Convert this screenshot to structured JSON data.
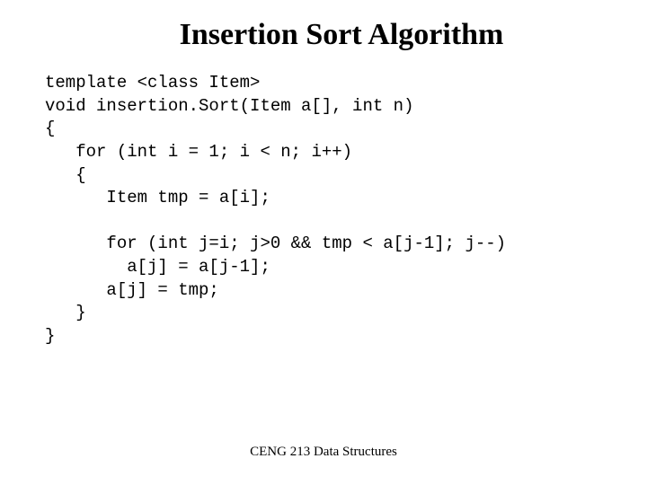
{
  "title": "Insertion Sort Algorithm",
  "code": {
    "line1": "template <class Item>",
    "line2": "void insertion.Sort(Item a[], int n)",
    "line3": "{",
    "line4": "   for (int i = 1; i < n; i++)",
    "line5": "   {",
    "line6": "      Item tmp = a[i];",
    "line7": "",
    "line8": "      for (int j=i; j>0 && tmp < a[j-1]; j--)",
    "line9": "        a[j] = a[j-1];",
    "line10": "      a[j] = tmp;",
    "line11": "   }",
    "line12": "}"
  },
  "footer": "CENG 213 Data Structures",
  "styling": {
    "background_color": "#ffffff",
    "text_color": "#000000",
    "title_fontsize": 34,
    "title_fontweight": "bold",
    "title_fontfamily": "Times New Roman",
    "code_fontsize": 19,
    "code_fontfamily": "Courier New",
    "footer_fontsize": 15,
    "footer_fontfamily": "Times New Roman",
    "slide_width": 720,
    "slide_height": 540
  }
}
